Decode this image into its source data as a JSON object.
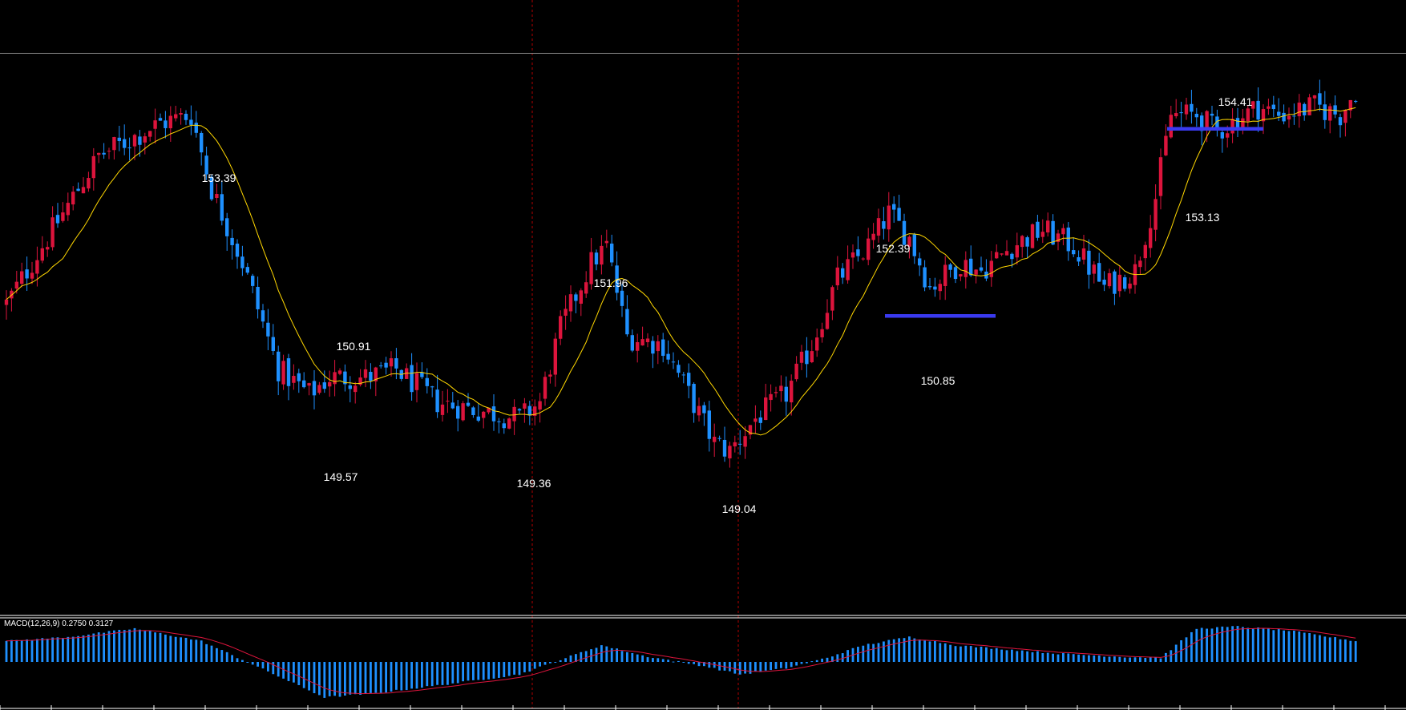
{
  "colors": {
    "background": "#000000",
    "bull_candle": "#dc143c",
    "bear_candle": "#1e90ff",
    "ma_line": "#ffd700",
    "vline": "#b40000",
    "hline": "#8c8c8c",
    "support_level": "#3a3af0",
    "macd_hist": "#1e90ff",
    "macd_signal": "#dc143c",
    "label": "#ffffff",
    "panel_border": "#ffffff"
  },
  "chart_data": {
    "type": "candlestick",
    "price_labels": [
      {
        "value": "153.39",
        "position": "above"
      },
      {
        "value": "150.91",
        "position": "above"
      },
      {
        "value": "149.57",
        "position": "below"
      },
      {
        "value": "149.36",
        "position": "below"
      },
      {
        "value": "151.96",
        "position": "above"
      },
      {
        "value": "149.04",
        "position": "below"
      },
      {
        "value": "152.39",
        "position": "above"
      },
      {
        "value": "150.85",
        "position": "below"
      },
      {
        "value": "154.41",
        "position": "above"
      },
      {
        "value": "153.13",
        "position": "below"
      }
    ],
    "support_levels": [
      {
        "price": 150.85
      },
      {
        "price": 153.13
      }
    ],
    "ylim": [
      147.2,
      154.7
    ],
    "horizontal_line_price": 154.05,
    "price_anchors": [
      [
        0,
        151.0
      ],
      [
        8,
        151.8
      ],
      [
        18,
        152.8
      ],
      [
        30,
        153.2
      ],
      [
        36,
        153.3
      ],
      [
        40,
        152.4
      ],
      [
        46,
        151.5
      ],
      [
        53,
        150.2
      ],
      [
        59,
        149.9
      ],
      [
        63,
        150.1
      ],
      [
        70,
        150.1
      ],
      [
        76,
        150.2
      ],
      [
        84,
        149.8
      ],
      [
        92,
        149.7
      ],
      [
        100,
        149.6
      ],
      [
        104,
        149.8
      ],
      [
        108,
        150.7
      ],
      [
        114,
        151.5
      ],
      [
        117,
        151.7
      ],
      [
        121,
        150.6
      ],
      [
        128,
        150.5
      ],
      [
        133,
        149.9
      ],
      [
        138,
        149.3
      ],
      [
        141,
        149.2
      ],
      [
        146,
        149.6
      ],
      [
        152,
        149.9
      ],
      [
        157,
        150.5
      ],
      [
        162,
        151.3
      ],
      [
        168,
        151.7
      ],
      [
        172,
        152.1
      ],
      [
        176,
        151.8
      ],
      [
        180,
        151.2
      ],
      [
        186,
        151.5
      ],
      [
        190,
        151.4
      ],
      [
        196,
        151.7
      ],
      [
        202,
        151.9
      ],
      [
        208,
        151.7
      ],
      [
        214,
        151.2
      ],
      [
        220,
        151.4
      ],
      [
        224,
        152.3
      ],
      [
        227,
        153.3
      ],
      [
        232,
        153.3
      ],
      [
        236,
        153.1
      ],
      [
        244,
        153.4
      ],
      [
        248,
        153.3
      ],
      [
        255,
        153.4
      ],
      [
        260,
        153.3
      ],
      [
        263,
        153.6
      ]
    ],
    "indicator": {
      "name": "MACD(12,26,9) 0.2750 0.3127",
      "type": "macd",
      "hist_anchors": [
        [
          0,
          0.5
        ],
        [
          12,
          0.6
        ],
        [
          25,
          0.8
        ],
        [
          38,
          0.5
        ],
        [
          46,
          0.05
        ],
        [
          54,
          -0.4
        ],
        [
          62,
          -0.85
        ],
        [
          72,
          -0.75
        ],
        [
          85,
          -0.55
        ],
        [
          100,
          -0.3
        ],
        [
          108,
          0.05
        ],
        [
          116,
          0.4
        ],
        [
          124,
          0.15
        ],
        [
          136,
          -0.1
        ],
        [
          143,
          -0.3
        ],
        [
          152,
          -0.15
        ],
        [
          160,
          0.1
        ],
        [
          167,
          0.4
        ],
        [
          176,
          0.6
        ],
        [
          185,
          0.4
        ],
        [
          195,
          0.3
        ],
        [
          205,
          0.2
        ],
        [
          218,
          0.12
        ],
        [
          225,
          0.1
        ],
        [
          232,
          0.8
        ],
        [
          240,
          0.85
        ],
        [
          250,
          0.75
        ],
        [
          263,
          0.5
        ]
      ]
    }
  }
}
